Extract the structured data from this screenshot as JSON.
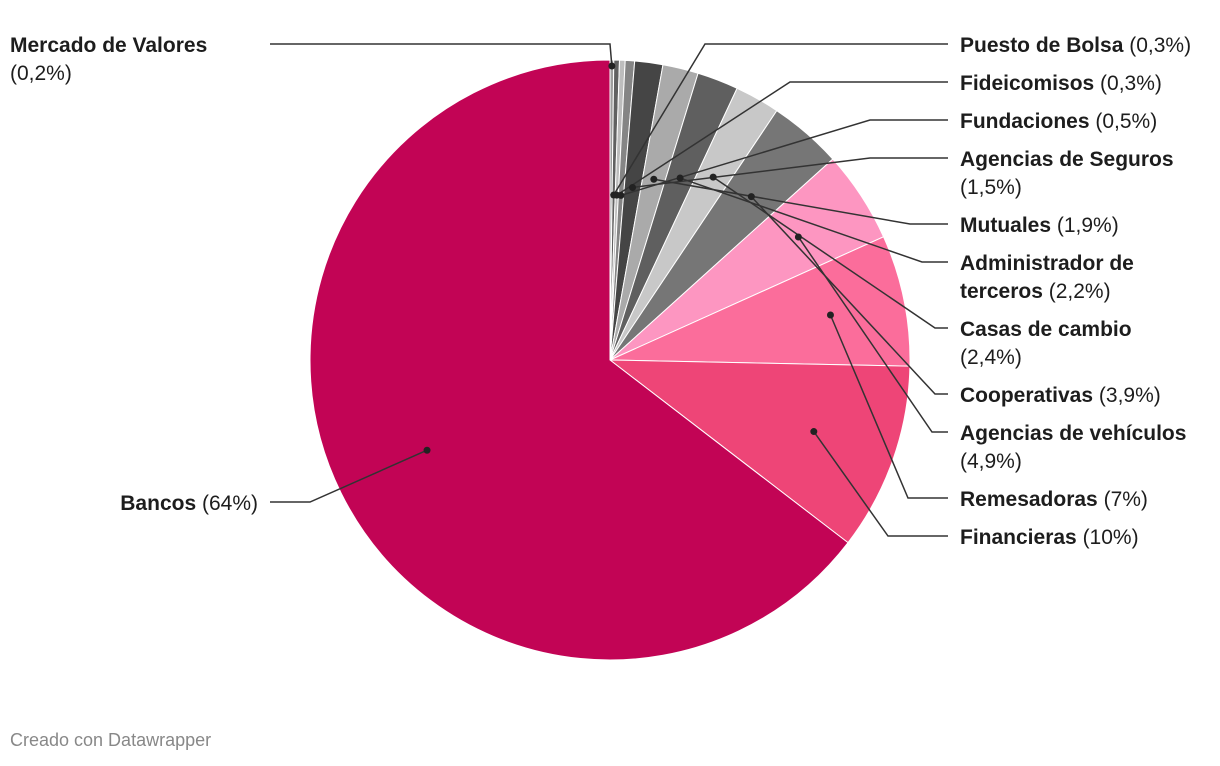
{
  "chart_data": {
    "type": "pie",
    "slices": [
      {
        "label": "Mercado de Valores",
        "value": 0.2,
        "pct_text": "(0,2%)",
        "color": "#9e9e9e"
      },
      {
        "label": "Puesto de Bolsa",
        "value": 0.3,
        "pct_text": "(0,3%)",
        "color": "#616161"
      },
      {
        "label": "Fideicomisos",
        "value": 0.3,
        "pct_text": "(0,3%)",
        "color": "#bdbdbd"
      },
      {
        "label": "Fundaciones",
        "value": 0.5,
        "pct_text": "(0,5%)",
        "color": "#858585"
      },
      {
        "label": "Agencias de Seguros",
        "value": 1.5,
        "pct_text": "(1,5%)",
        "color": "#454545"
      },
      {
        "label": "Mutuales",
        "value": 1.9,
        "pct_text": "(1,9%)",
        "color": "#aaaaaa"
      },
      {
        "label": "Administrador de terceros",
        "value": 2.2,
        "pct_text": "(2,2%)",
        "color": "#5f5f5f"
      },
      {
        "label": "Casas de cambio",
        "value": 2.4,
        "pct_text": "(2,4%)",
        "color": "#c8c8c8"
      },
      {
        "label": "Cooperativas",
        "value": 3.9,
        "pct_text": "(3,9%)",
        "color": "#767676"
      },
      {
        "label": "Agencias de vehículos",
        "value": 4.9,
        "pct_text": "(4,9%)",
        "color": "#fd96c1"
      },
      {
        "label": "Remesadoras",
        "value": 7,
        "pct_text": "(7%)",
        "color": "#fb6d9b"
      },
      {
        "label": "Financieras",
        "value": 10,
        "pct_text": "(10%)",
        "color": "#ee4577"
      },
      {
        "label": "Bancos",
        "value": 64,
        "pct_text": "(64%)",
        "color": "#c20455"
      }
    ]
  },
  "footer": "Creado con Datawrapper"
}
